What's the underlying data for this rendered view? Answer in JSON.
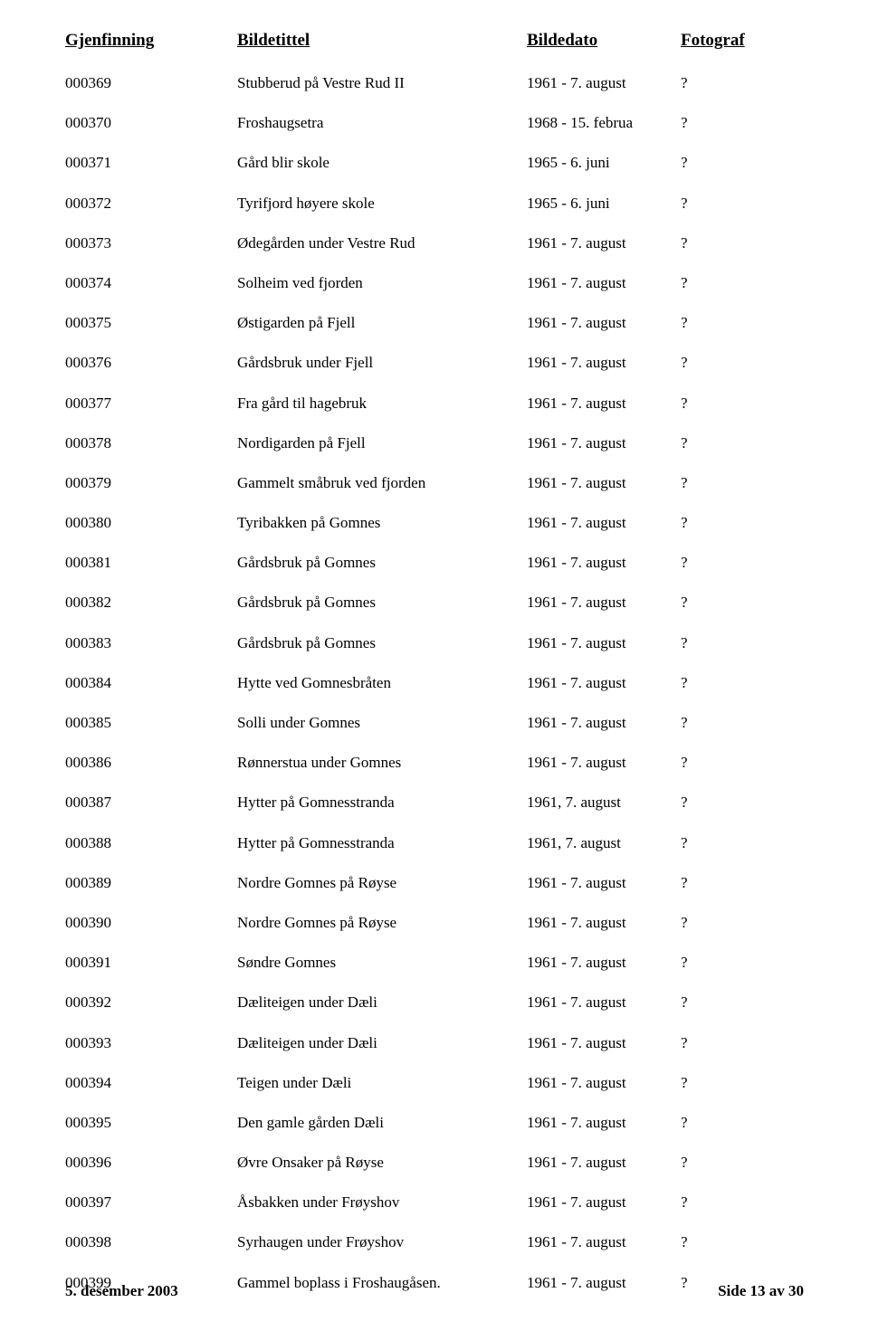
{
  "header": {
    "gjenfinning": "Gjenfinning",
    "bildetittel": "Bildetittel",
    "bildedato": "Bildedato",
    "fotograf": "Fotograf"
  },
  "rows": [
    {
      "g": "000369",
      "t": "Stubberud på Vestre Rud II",
      "d": "1961 - 7. august",
      "f": "?"
    },
    {
      "g": "000370",
      "t": "Froshaugsetra",
      "d": "1968 - 15. februa",
      "f": "?"
    },
    {
      "g": "000371",
      "t": "Gård blir skole",
      "d": "1965 - 6. juni",
      "f": "?"
    },
    {
      "g": "000372",
      "t": "Tyrifjord høyere skole",
      "d": "1965 - 6. juni",
      "f": "?"
    },
    {
      "g": "000373",
      "t": "Ødegården under Vestre Rud",
      "d": "1961 - 7. august",
      "f": "?"
    },
    {
      "g": "000374",
      "t": "Solheim ved fjorden",
      "d": "1961 - 7. august",
      "f": "?"
    },
    {
      "g": "000375",
      "t": "Østigarden på Fjell",
      "d": "1961 - 7. august",
      "f": "?"
    },
    {
      "g": "000376",
      "t": "Gårdsbruk under Fjell",
      "d": "1961 - 7. august",
      "f": "?"
    },
    {
      "g": "000377",
      "t": "Fra gård til hagebruk",
      "d": "1961 - 7. august",
      "f": "?"
    },
    {
      "g": "000378",
      "t": "Nordigarden på Fjell",
      "d": "1961 - 7. august",
      "f": "?"
    },
    {
      "g": "000379",
      "t": "Gammelt småbruk ved fjorden",
      "d": "1961 - 7. august",
      "f": "?"
    },
    {
      "g": "000380",
      "t": "Tyribakken på Gomnes",
      "d": "1961 - 7. august",
      "f": "?"
    },
    {
      "g": "000381",
      "t": "Gårdsbruk på Gomnes",
      "d": "1961 - 7. august",
      "f": "?"
    },
    {
      "g": "000382",
      "t": "Gårdsbruk på Gomnes",
      "d": "1961 - 7. august",
      "f": "?"
    },
    {
      "g": "000383",
      "t": "Gårdsbruk på Gomnes",
      "d": "1961 - 7. august",
      "f": "?"
    },
    {
      "g": "000384",
      "t": "Hytte ved Gomnesbråten",
      "d": "1961 - 7. august",
      "f": "?"
    },
    {
      "g": "000385",
      "t": "Solli under Gomnes",
      "d": "1961 - 7. august",
      "f": "?"
    },
    {
      "g": "000386",
      "t": "Rønnerstua under Gomnes",
      "d": "1961 - 7. august",
      "f": "?"
    },
    {
      "g": "000387",
      "t": "Hytter på Gomnesstranda",
      "d": "1961, 7. august",
      "f": "?"
    },
    {
      "g": "000388",
      "t": "Hytter på Gomnesstranda",
      "d": "1961, 7. august",
      "f": "?"
    },
    {
      "g": "000389",
      "t": "Nordre Gomnes på Røyse",
      "d": "1961 - 7. august",
      "f": "?"
    },
    {
      "g": "000390",
      "t": "Nordre Gomnes på Røyse",
      "d": "1961 - 7. august",
      "f": "?"
    },
    {
      "g": "000391",
      "t": "Søndre Gomnes",
      "d": "1961 - 7. august",
      "f": "?"
    },
    {
      "g": "000392",
      "t": "Dæliteigen under Dæli",
      "d": "1961 - 7. august",
      "f": "?"
    },
    {
      "g": "000393",
      "t": "Dæliteigen under Dæli",
      "d": "1961 - 7. august",
      "f": "?"
    },
    {
      "g": "000394",
      "t": "Teigen under Dæli",
      "d": "1961 - 7. august",
      "f": "?"
    },
    {
      "g": "000395",
      "t": "Den gamle gården Dæli",
      "d": "1961 - 7. august",
      "f": "?"
    },
    {
      "g": "000396",
      "t": "Øvre Onsaker på Røyse",
      "d": "1961 - 7. august",
      "f": "?"
    },
    {
      "g": "000397",
      "t": "Åsbakken under Frøyshov",
      "d": "1961 - 7. august",
      "f": "?"
    },
    {
      "g": "000398",
      "t": "Syrhaugen under Frøyshov",
      "d": "1961 - 7. august",
      "f": "?"
    },
    {
      "g": "000399",
      "t": "Gammel boplass i Froshaugåsen.",
      "d": "1961 - 7. august",
      "f": "?"
    }
  ],
  "footer": {
    "date": "5. desember 2003",
    "page": "Side 13 av 30"
  }
}
